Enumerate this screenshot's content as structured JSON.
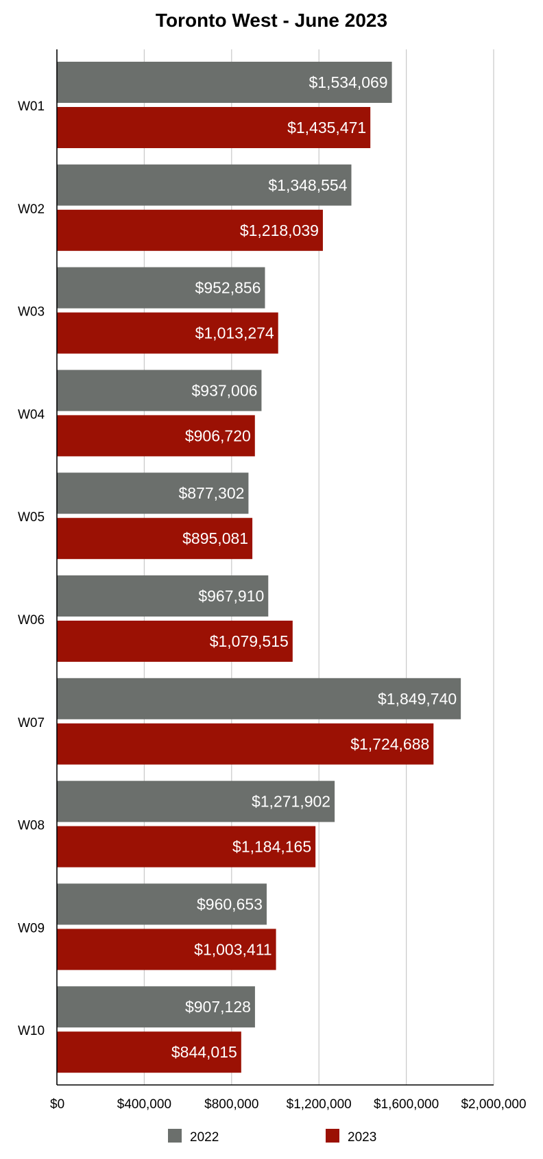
{
  "chart_data": {
    "type": "bar",
    "orientation": "horizontal",
    "title": "Toronto West - June 2023",
    "categories": [
      "W01",
      "W02",
      "W03",
      "W04",
      "W05",
      "W06",
      "W07",
      "W08",
      "W09",
      "W10"
    ],
    "series": [
      {
        "name": "2022",
        "color": "#6b6f6c",
        "values": [
          1534069,
          1348554,
          952856,
          937006,
          877302,
          967910,
          1849740,
          1271902,
          960653,
          907128
        ],
        "labels": [
          "$1,534,069",
          "$1,348,554",
          "$952,856",
          "$937,006",
          "$877,302",
          "$967,910",
          "$1,849,740",
          "$1,271,902",
          "$960,653",
          "$907,128"
        ]
      },
      {
        "name": "2023",
        "color": "#9b1104",
        "values": [
          1435471,
          1218039,
          1013274,
          906720,
          895081,
          1079515,
          1724688,
          1184165,
          1003411,
          844015
        ],
        "labels": [
          "$1,435,471",
          "$1,218,039",
          "$1,013,274",
          "$906,720",
          "$895,081",
          "$1,079,515",
          "$1,724,688",
          "$1,184,165",
          "$1,003,411",
          "$844,015"
        ]
      }
    ],
    "xlim": [
      0,
      2000000
    ],
    "xticks": [
      0,
      400000,
      800000,
      1200000,
      1600000,
      2000000
    ],
    "xtick_labels": [
      "$0",
      "$400,000",
      "$800,000",
      "$1,200,000",
      "$1,600,000",
      "$2,000,000"
    ],
    "xlabel": "",
    "ylabel": "",
    "grid": "vertical",
    "legend": "bottom"
  }
}
